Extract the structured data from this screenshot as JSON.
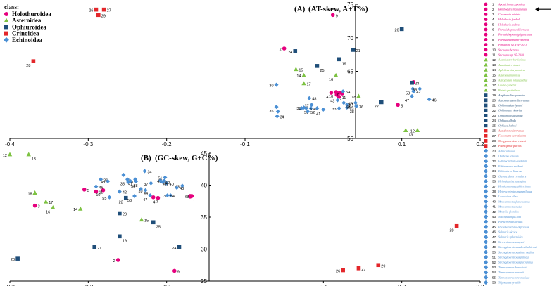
{
  "legend": {
    "title": "class:",
    "items": [
      {
        "label": "Holothuroidea",
        "color": "#e6007e",
        "shape": "circle"
      },
      {
        "label": "Asteroidea",
        "color": "#7dc242",
        "shape": "triangle"
      },
      {
        "label": "Ophiuroidea",
        "color": "#1f4e79",
        "shape": "square"
      },
      {
        "label": "Crinoidea",
        "color": "#e3262a",
        "shape": "square"
      },
      {
        "label": "Echinoidea",
        "color": "#4a8fd4",
        "shape": "diamond"
      }
    ]
  },
  "species": [
    {
      "n": "1",
      "name": "Apostichopus japonicus",
      "cls": 0
    },
    {
      "n": "2",
      "name": "Benthodytes marianensis",
      "cls": 0
    },
    {
      "n": "3",
      "name": "Cucumaria miniata",
      "cls": 0
    },
    {
      "n": "4",
      "name": "Holothuria forskali",
      "cls": 0
    },
    {
      "n": "5",
      "name": "Holothuria scabra",
      "cls": 0
    },
    {
      "n": "6",
      "name": "Parastichopus californicus",
      "cls": 0
    },
    {
      "n": "7",
      "name": "Parastichopus nigripunctatus",
      "cls": 0
    },
    {
      "n": "8",
      "name": "Parastichopus parvimensis",
      "cls": 0
    },
    {
      "n": "9",
      "name": "Peniagone sp. YYH-2013",
      "cls": 0
    },
    {
      "n": "10",
      "name": "Stichopus horrens",
      "cls": 0
    },
    {
      "n": "11",
      "name": "Stichopus sp. SF-2010",
      "cls": 0
    },
    {
      "n": "12",
      "name": "Acanthaster brevispinus",
      "cls": 1
    },
    {
      "n": "13",
      "name": "Acanthaster planci",
      "cls": 1
    },
    {
      "n": "14",
      "name": "Aphelasterias japonica",
      "cls": 1
    },
    {
      "n": "15",
      "name": "Asterias amurensis",
      "cls": 1
    },
    {
      "n": "16",
      "name": "Astropecten polyacanthus",
      "cls": 1
    },
    {
      "n": "17",
      "name": "Luidia quinaria",
      "cls": 1
    },
    {
      "n": "18",
      "name": "Patiria pectinifera",
      "cls": 1
    },
    {
      "n": "19",
      "name": "Amphipholis squamata",
      "cls": 2
    },
    {
      "n": "20",
      "name": "Astrospartus mediterraneus",
      "cls": 2
    },
    {
      "n": "21",
      "name": "Ophiomusium lymani",
      "cls": 2
    },
    {
      "n": "22",
      "name": "Ophionotus victoriae",
      "cls": 2
    },
    {
      "n": "23",
      "name": "Ophiopholis aculeata",
      "cls": 2
    },
    {
      "n": "24",
      "name": "Ophiura albida",
      "cls": 2
    },
    {
      "n": "25",
      "name": "Ophiura lutkeni",
      "cls": 2
    },
    {
      "n": "26",
      "name": "Antedon mediterranea",
      "cls": 3
    },
    {
      "n": "27",
      "name": "Florometra serratissima",
      "cls": 3
    },
    {
      "n": "28",
      "name": "Neogymnocrinus richeri",
      "cls": 3
    },
    {
      "n": "29",
      "name": "Phanogenia gracilis",
      "cls": 3
    },
    {
      "n": "30",
      "name": "Arbacia lixula",
      "cls": 4
    },
    {
      "n": "31",
      "name": "Diadema setosum",
      "cls": 4
    },
    {
      "n": "32",
      "name": "Echinocardium cordatum",
      "cls": 4
    },
    {
      "n": "33",
      "name": "Echinometra mathaei",
      "cls": 4
    },
    {
      "n": "34",
      "name": "Echinothrix diadema",
      "cls": 4
    },
    {
      "n": "35",
      "name": "Glyptocidaris crenularis",
      "cls": 4
    },
    {
      "n": "36",
      "name": "Heliocidaris crassispina",
      "cls": 4
    },
    {
      "n": "37",
      "name": "Hemicentrotus pulcherrimus",
      "cls": 4
    },
    {
      "n": "38",
      "name": "Heterocentrotus mammillatus",
      "cls": 4
    },
    {
      "n": "39",
      "name": "Loxechinus albus",
      "cls": 4
    },
    {
      "n": "40",
      "name": "Mesocentrotus franciscanus",
      "cls": 4
    },
    {
      "n": "41",
      "name": "Mesocentrotus nudus",
      "cls": 4
    },
    {
      "n": "42",
      "name": "Mespilia globulus",
      "cls": 4
    },
    {
      "n": "43",
      "name": "Nacospatangus alta",
      "cls": 4
    },
    {
      "n": "44",
      "name": "Paracentrotus lividus",
      "cls": 4
    },
    {
      "n": "45",
      "name": "Pseudocentrotus depressus",
      "cls": 4
    },
    {
      "n": "46",
      "name": "Salmacis bicolor",
      "cls": 4
    },
    {
      "n": "47",
      "name": "Salmacis sphaeroides",
      "cls": 4
    },
    {
      "n": "48",
      "name": "Sterechinus neumayeri",
      "cls": 4
    },
    {
      "n": "49",
      "name": "Strongylocentrotus droebachiensis",
      "cls": 4
    },
    {
      "n": "50",
      "name": "Strongylocentrotus intermedius",
      "cls": 4
    },
    {
      "n": "51",
      "name": "Strongylocentrotus pallidus",
      "cls": 4
    },
    {
      "n": "52",
      "name": "Strongylocentrotus purpuratus",
      "cls": 4
    },
    {
      "n": "53",
      "name": "Temnopleurus hardwickii",
      "cls": 4
    },
    {
      "n": "54",
      "name": "Temnopleurus reevesii",
      "cls": 4
    },
    {
      "n": "55",
      "name": "Temnopleurus toreumaticus",
      "cls": 4
    },
    {
      "n": "56",
      "name": "Tripneustes gratilla",
      "cls": 4
    }
  ],
  "chart_data": [
    {
      "type": "scatter",
      "title": "(A)",
      "ylabel": "(AT-skew, A+T%)",
      "xlim": [
        -0.4,
        0.2
      ],
      "ylim": [
        55,
        75
      ],
      "xticks": [
        -0.4,
        -0.3,
        -0.2,
        -0.1,
        0.1,
        0.2
      ],
      "yticks": [
        55,
        60,
        65,
        70,
        75
      ],
      "points": [
        {
          "n": "1",
          "x": 0.017,
          "y": 61.8
        },
        {
          "n": "2",
          "x": -0.05,
          "y": 68.4
        },
        {
          "n": "3",
          "x": 0.115,
          "y": 63.4
        },
        {
          "n": "4",
          "x": 0.01,
          "y": 61.8
        },
        {
          "n": "5",
          "x": 0.095,
          "y": 60.0
        },
        {
          "n": "6",
          "x": 0.021,
          "y": 61.8
        },
        {
          "n": "7",
          "x": 0.017,
          "y": 61.5
        },
        {
          "n": "8",
          "x": 0.024,
          "y": 61.7
        },
        {
          "n": "9",
          "x": 0.012,
          "y": 73.4
        },
        {
          "n": "10",
          "x": 0.016,
          "y": 61.9
        },
        {
          "n": "11",
          "x": 0.02,
          "y": 61.2
        },
        {
          "n": "12",
          "x": 0.12,
          "y": 56.2
        },
        {
          "n": "13",
          "x": 0.105,
          "y": 56.2
        },
        {
          "n": "14",
          "x": -0.025,
          "y": 64.4
        },
        {
          "n": "15",
          "x": -0.035,
          "y": 65.3
        },
        {
          "n": "16",
          "x": 0.016,
          "y": 64.4
        },
        {
          "n": "17",
          "x": -0.025,
          "y": 63.2
        },
        {
          "n": "18",
          "x": 0.045,
          "y": 61.3
        },
        {
          "n": "19",
          "x": 0.02,
          "y": 66.8
        },
        {
          "n": "20",
          "x": 0.1,
          "y": 71.3
        },
        {
          "n": "21",
          "x": 0.038,
          "y": 68.2
        },
        {
          "n": "22",
          "x": 0.074,
          "y": 60.4
        },
        {
          "n": "23",
          "x": 0.113,
          "y": 63.3
        },
        {
          "n": "24",
          "x": -0.036,
          "y": 68.0
        },
        {
          "n": "25",
          "x": -0.008,
          "y": 65.8
        },
        {
          "n": "26",
          "x": -0.29,
          "y": 74.2
        },
        {
          "n": "27",
          "x": -0.28,
          "y": 74.2
        },
        {
          "n": "28",
          "x": -0.37,
          "y": 66.5
        },
        {
          "n": "29",
          "x": -0.287,
          "y": 73.4
        },
        {
          "n": "30",
          "x": -0.06,
          "y": 63.0
        },
        {
          "n": "31",
          "x": -0.058,
          "y": 59.0
        },
        {
          "n": "33",
          "x": 0.02,
          "y": 59.5
        },
        {
          "n": "34",
          "x": -0.059,
          "y": 58.3
        },
        {
          "n": "35",
          "x": -0.06,
          "y": 59.7
        },
        {
          "n": "36",
          "x": 0.042,
          "y": 59.8
        },
        {
          "n": "37",
          "x": -0.015,
          "y": 60.0
        },
        {
          "n": "38",
          "x": 0.03,
          "y": 59.6
        },
        {
          "n": "39",
          "x": -0.025,
          "y": 59.6
        },
        {
          "n": "40",
          "x": -0.016,
          "y": 59.5
        },
        {
          "n": "41",
          "x": 0.0,
          "y": 59.3
        },
        {
          "n": "42",
          "x": 0.115,
          "y": 62.0
        },
        {
          "n": "43",
          "x": 0.018,
          "y": 60.7
        },
        {
          "n": "44",
          "x": 0.03,
          "y": 60.0
        },
        {
          "n": "45",
          "x": 0.041,
          "y": 60.3
        },
        {
          "n": "46",
          "x": 0.135,
          "y": 60.8
        },
        {
          "n": "47",
          "x": 0.113,
          "y": 61.3
        },
        {
          "n": "48",
          "x": -0.018,
          "y": 61.0
        },
        {
          "n": "49",
          "x": -0.022,
          "y": 59.5
        },
        {
          "n": "50",
          "x": -0.028,
          "y": 59.5
        },
        {
          "n": "51",
          "x": -0.008,
          "y": 59.5
        },
        {
          "n": "52",
          "x": -0.02,
          "y": 59.0
        },
        {
          "n": "53",
          "x": 0.114,
          "y": 62.4
        },
        {
          "n": "54",
          "x": 0.025,
          "y": 62.0
        },
        {
          "n": "55",
          "x": 0.123,
          "y": 62.4
        },
        {
          "n": "56",
          "x": 0.026,
          "y": 60.3
        }
      ]
    },
    {
      "type": "scatter",
      "title": "(B)",
      "ylabel": "(GC-skew, G+C%)",
      "xlim": [
        -0.3,
        0.3
      ],
      "ylim": [
        25,
        45
      ],
      "xticks": [
        -0.3,
        -0.2,
        -0.1,
        0.1,
        0.2,
        0.3
      ],
      "yticks": [
        25,
        30,
        35,
        40,
        45
      ],
      "points": [
        {
          "n": "1",
          "x": -0.07,
          "y": 38.2
        },
        {
          "n": "2",
          "x": -0.162,
          "y": 28.3
        },
        {
          "n": "3",
          "x": -0.268,
          "y": 36.8
        },
        {
          "n": "4",
          "x": -0.111,
          "y": 38.0
        },
        {
          "n": "5",
          "x": -0.205,
          "y": 39.3
        },
        {
          "n": "6",
          "x": -0.07,
          "y": 38.3
        },
        {
          "n": "7",
          "x": -0.117,
          "y": 38.1
        },
        {
          "n": "8",
          "x": -0.068,
          "y": 38.3
        },
        {
          "n": "9",
          "x": -0.09,
          "y": 26.6
        },
        {
          "n": "10",
          "x": -0.181,
          "y": 39.2
        },
        {
          "n": "11",
          "x": -0.19,
          "y": 39.0
        },
        {
          "n": "12",
          "x": -0.3,
          "y": 44.8
        },
        {
          "n": "13",
          "x": -0.276,
          "y": 44.8
        },
        {
          "n": "14",
          "x": -0.21,
          "y": 36.3
        },
        {
          "n": "15",
          "x": -0.132,
          "y": 34.6
        },
        {
          "n": "16",
          "x": -0.245,
          "y": 36.5
        },
        {
          "n": "17",
          "x": -0.254,
          "y": 37.4
        },
        {
          "n": "18",
          "x": -0.268,
          "y": 38.8
        },
        {
          "n": "19",
          "x": -0.16,
          "y": 32.0
        },
        {
          "n": "20",
          "x": -0.29,
          "y": 28.5
        },
        {
          "n": "21",
          "x": -0.192,
          "y": 30.3
        },
        {
          "n": "22",
          "x": -0.152,
          "y": 38.0
        },
        {
          "n": "23",
          "x": -0.16,
          "y": 35.6
        },
        {
          "n": "24",
          "x": -0.084,
          "y": 30.3
        },
        {
          "n": "25",
          "x": -0.117,
          "y": 34.2
        },
        {
          "n": "26",
          "x": 0.125,
          "y": 26.7
        },
        {
          "n": "27",
          "x": 0.145,
          "y": 27.0
        },
        {
          "n": "28",
          "x": 0.27,
          "y": 33.6
        },
        {
          "n": "29",
          "x": 0.17,
          "y": 27.5
        },
        {
          "n": "30",
          "x": -0.095,
          "y": 38.4
        },
        {
          "n": "31",
          "x": -0.155,
          "y": 41.6
        },
        {
          "n": "33",
          "x": -0.139,
          "y": 40.6
        },
        {
          "n": "34",
          "x": -0.128,
          "y": 42.2
        },
        {
          "n": "35",
          "x": -0.15,
          "y": 40.9
        },
        {
          "n": "36",
          "x": -0.184,
          "y": 40.9
        },
        {
          "n": "37",
          "x": -0.12,
          "y": 40.3
        },
        {
          "n": "38",
          "x": -0.146,
          "y": 40.6
        },
        {
          "n": "39",
          "x": -0.127,
          "y": 39.2
        },
        {
          "n": "40",
          "x": -0.1,
          "y": 40.3
        },
        {
          "n": "41",
          "x": -0.14,
          "y": 40.9
        },
        {
          "n": "42",
          "x": -0.16,
          "y": 39.0
        },
        {
          "n": "43",
          "x": -0.08,
          "y": 39.9
        },
        {
          "n": "44",
          "x": -0.133,
          "y": 39.4
        },
        {
          "n": "45",
          "x": -0.175,
          "y": 40.6
        },
        {
          "n": "46",
          "x": -0.19,
          "y": 39.8
        },
        {
          "n": "47",
          "x": -0.121,
          "y": 38.4
        },
        {
          "n": "48",
          "x": -0.087,
          "y": 39.6
        },
        {
          "n": "49",
          "x": -0.103,
          "y": 40.7
        },
        {
          "n": "50",
          "x": -0.108,
          "y": 40.7
        },
        {
          "n": "51",
          "x": -0.102,
          "y": 41.2
        },
        {
          "n": "52",
          "x": -0.105,
          "y": 40.5
        },
        {
          "n": "53",
          "x": -0.141,
          "y": 38.3
        },
        {
          "n": "54",
          "x": -0.099,
          "y": 38.4
        },
        {
          "n": "55",
          "x": -0.173,
          "y": 38.1
        },
        {
          "n": "56",
          "x": -0.149,
          "y": 40.5
        }
      ]
    }
  ]
}
